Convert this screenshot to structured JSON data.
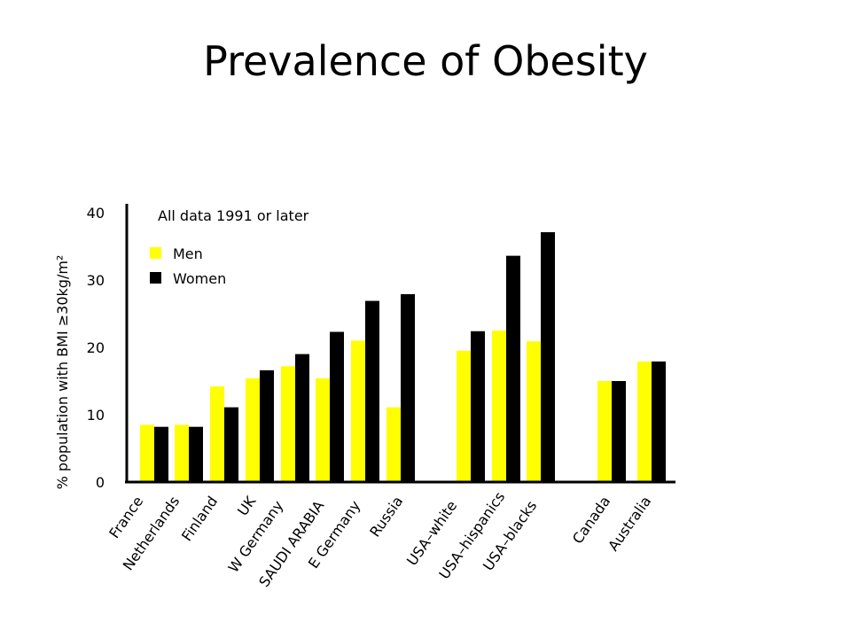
{
  "chart_data": {
    "type": "bar",
    "title": "Prevalence of Obesity",
    "ylabel": "% population with BMI ≥30kg/m²",
    "xlabel": "",
    "ylim": [
      0,
      40
    ],
    "yticks": [
      0,
      10,
      20,
      30,
      40
    ],
    "annotation": "All data 1991 or later",
    "legend_position": "top-left",
    "grid": false,
    "categories": [
      "France",
      "Netherlands",
      "Finland",
      "UK",
      "W Germany",
      "SAUDI ARABIA",
      "E Germany",
      "Russia",
      "USA–white",
      "USA–hispanics",
      "USA–blacks",
      "Canada",
      "Australia"
    ],
    "series": [
      {
        "name": "Men",
        "color": "#ffff00",
        "values": [
          8.5,
          8.5,
          14.2,
          15.4,
          17.2,
          15.4,
          21.0,
          11.1,
          19.5,
          22.5,
          20.9,
          15.0,
          17.9
        ]
      },
      {
        "name": "Women",
        "color": "#000000",
        "values": [
          8.2,
          8.2,
          11.1,
          16.6,
          19.0,
          22.3,
          26.9,
          27.9,
          22.4,
          33.6,
          37.1,
          15.0,
          17.9
        ]
      }
    ]
  }
}
